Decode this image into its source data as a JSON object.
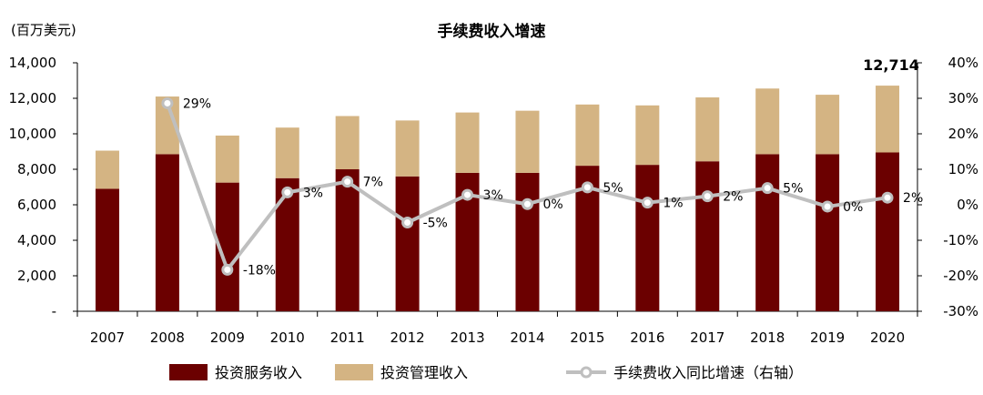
{
  "chart_data": {
    "type": "bar",
    "title": "手续费收入增速",
    "ylabel": "(百万美元)",
    "ylim": [
      0,
      14000
    ],
    "y_ticks": [
      "-",
      "2,000",
      "4,000",
      "6,000",
      "8,000",
      "10,000",
      "12,000",
      "14,000"
    ],
    "y2lim": [
      -30,
      40
    ],
    "y2_ticks": [
      "-30%",
      "-20%",
      "-10%",
      "0%",
      "10%",
      "20%",
      "30%",
      "40%"
    ],
    "categories": [
      "2007",
      "2008",
      "2009",
      "2010",
      "2011",
      "2012",
      "2013",
      "2014",
      "2015",
      "2016",
      "2017",
      "2018",
      "2019",
      "2020"
    ],
    "series": [
      {
        "name": "投资服务收入",
        "type": "bar",
        "stack": "total",
        "color": "#6b0000",
        "values": [
          6900,
          8850,
          7250,
          7500,
          8000,
          7600,
          7800,
          7800,
          8200,
          8250,
          8450,
          8850,
          8850,
          8950
        ]
      },
      {
        "name": "投资管理收入",
        "type": "bar",
        "stack": "total",
        "color": "#d4b483",
        "values": [
          2150,
          3250,
          2650,
          2850,
          3000,
          3150,
          3400,
          3500,
          3450,
          3350,
          3600,
          3700,
          3350,
          3764
        ]
      },
      {
        "name": "手续费收入同比增速（右轴）",
        "type": "line",
        "axis": "right",
        "color": "#bfbfbf",
        "values": [
          null,
          28.6,
          -18.3,
          3.5,
          6.5,
          -5.0,
          2.8,
          0.2,
          4.9,
          0.6,
          2.4,
          4.7,
          -0.5,
          2.0
        ],
        "labels": [
          "",
          "29%",
          "-18%",
          "3%",
          "7%",
          "-5%",
          "3%",
          "0%",
          "5%",
          "1%",
          "2%",
          "5%",
          "0%",
          "2%"
        ]
      }
    ],
    "annotations": [
      {
        "category": "2020",
        "text": "12,714"
      }
    ],
    "legend_position": "bottom",
    "grid": false
  }
}
